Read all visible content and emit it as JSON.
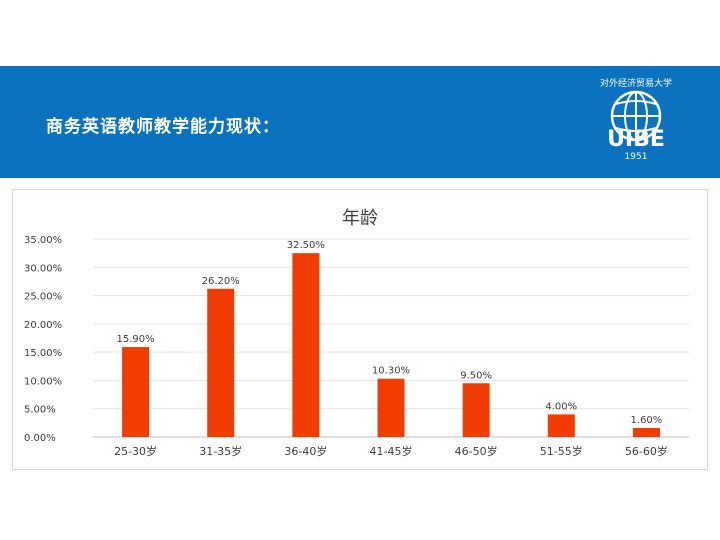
{
  "slide": {
    "title": "商务英语教师教学能力现状：",
    "banner_color": "#0b72c0",
    "title_color": "#ffffff"
  },
  "logo": {
    "icon": "globe-icon",
    "text": "UIBE",
    "year": "1951",
    "arc_text": "对外经济贸易大学"
  },
  "chart_data": {
    "type": "bar",
    "title": "年龄",
    "categories": [
      "25-30岁",
      "31-35岁",
      "36-40岁",
      "41-45岁",
      "46-50岁",
      "51-55岁",
      "56-60岁"
    ],
    "values": [
      15.9,
      26.2,
      32.5,
      10.3,
      9.5,
      4.0,
      1.6
    ],
    "value_labels": [
      "15.90%",
      "26.20%",
      "32.50%",
      "10.30%",
      "9.50%",
      "4.00%",
      "1.60%"
    ],
    "y_ticks": [
      "0.00%",
      "5.00%",
      "10.00%",
      "15.00%",
      "20.00%",
      "25.00%",
      "30.00%",
      "35.00%"
    ],
    "ylim": [
      0,
      35
    ],
    "grid": true,
    "bar_color": "#f23c00",
    "xlabel": "",
    "ylabel": ""
  }
}
